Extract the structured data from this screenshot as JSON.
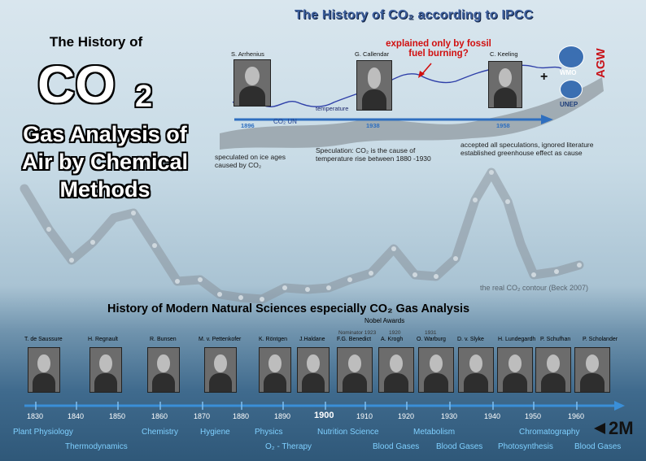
{
  "header": {
    "history_of": "The History of",
    "co2": "CO",
    "co2_sub": "2",
    "gas_lines": [
      "Gas Analysis of",
      "Air by Chemical",
      "Methods"
    ]
  },
  "ipcc_panel": {
    "title": "The  History of CO₂ according to IPCC",
    "scientists": [
      {
        "name": "S. Arrhenius",
        "year": "1896"
      },
      {
        "name": "G. Callendar",
        "year": "1938"
      },
      {
        "name": "C. Keeling",
        "year": "1958"
      }
    ],
    "red_note": "explained only by fossil fuel burning?",
    "temperature_label": "temperature",
    "co2_un_label": "CO₂ UN",
    "plus": "+",
    "wmo": "WMO",
    "unep": "UNEP",
    "agw": "AGW",
    "notes": {
      "arrhenius": "speculated on ice ages caused by CO₂",
      "callendar": "Speculation: CO₂ is the cause of temperature rise between 1880 -1930",
      "keeling": "accepted all speculations, ignored literature established greenhouse effect as cause"
    }
  },
  "beck_label": "the real CO₂ contour (Beck 2007)",
  "modern": {
    "title": "History of Modern Natural Sciences especially CO₂ Gas Analysis",
    "nobel_awards": "Nobel Awards",
    "nominator": "Nominator 1923",
    "nobel_years": [
      "1920",
      "1931"
    ],
    "scientists": [
      "T. de Saussure",
      "H. Regnault",
      "R. Bunsen",
      "M. v. Pettenkofer",
      "K. Röntgen",
      "J.Haldane",
      "F.G. Benedict",
      "A. Krogh",
      "O. Warburg",
      "D. v. Slyke",
      "H. Lundegardh",
      "P. Schufhan",
      "P. Scholander"
    ],
    "years": [
      "1830",
      "1840",
      "1850",
      "1860",
      "1870",
      "1880",
      "1890",
      "1900",
      "1910",
      "1920",
      "1930",
      "1940",
      "1950",
      "1960"
    ],
    "fields": [
      "Plant Physiology",
      "Thermodynamics",
      "Chemistry",
      "Hygiene",
      "Physics",
      "O₂ - Therapy",
      "Nutrition Science",
      "Blood Gases",
      "Metabolism",
      "Blood Gases",
      "Photosynthesis",
      "Chromatography",
      "Blood Gases"
    ],
    "scale": "2M"
  }
}
